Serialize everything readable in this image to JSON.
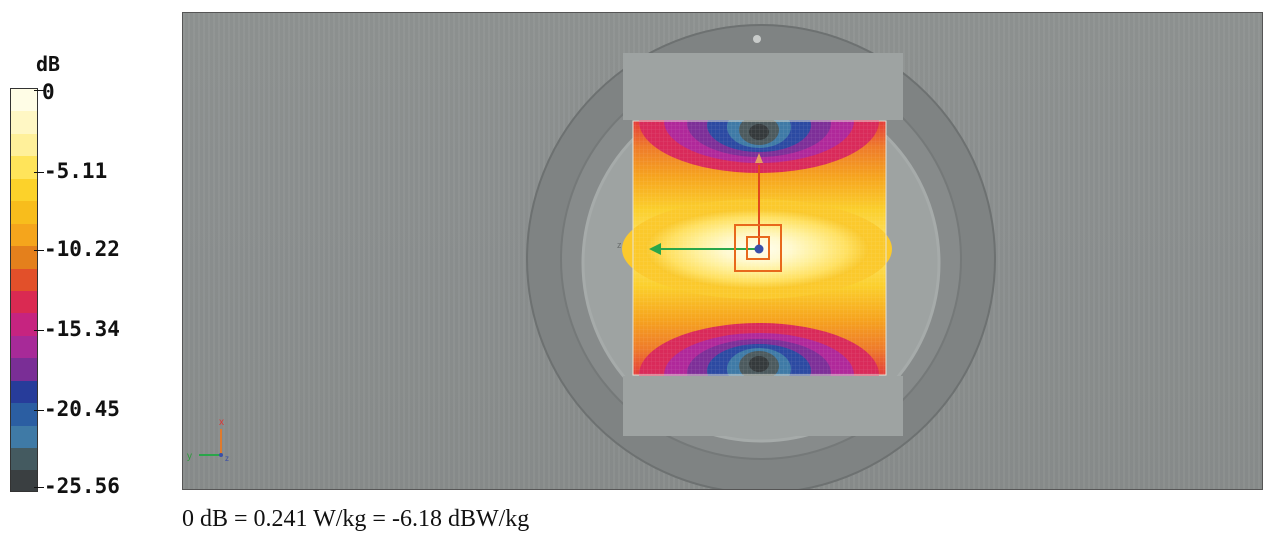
{
  "legend": {
    "unit": "dB",
    "ticks": [
      "0",
      "-5.11",
      "-10.22",
      "-15.34",
      "-20.45",
      "-25.56"
    ],
    "bands": [
      "#fffde6",
      "#fff7c4",
      "#fff09a",
      "#ffe45a",
      "#fcd22a",
      "#f8bd1c",
      "#f5a51c",
      "#e4801c",
      "#e2502a",
      "#da2a52",
      "#c62480",
      "#a72a98",
      "#7a2e96",
      "#273c9a",
      "#2b5ea2",
      "#3f7aa6",
      "#445a60",
      "#3a3f41"
    ]
  },
  "axes": {
    "x": "x",
    "y": "y",
    "z": "z"
  },
  "caption": "0 dB = 0.241 W/kg = -6.18 dBW/kg"
}
